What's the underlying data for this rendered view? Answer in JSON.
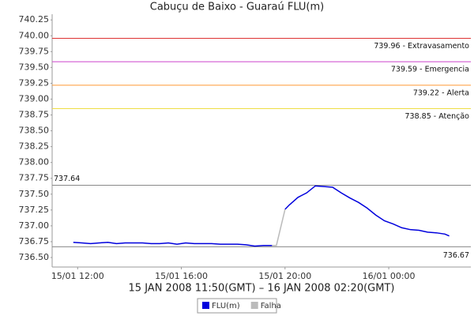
{
  "chart_data": {
    "type": "line",
    "title": "Cabuçu de Baixo - Guaraú FLU(m)",
    "x_label": "15 JAN 2008 11:50(GMT) – 16 JAN 2008 02:20(GMT)",
    "x": [
      "2008-01-15 11:50",
      "2008-01-15 12:10",
      "2008-01-15 12:30",
      "2008-01-15 12:50",
      "2008-01-15 13:10",
      "2008-01-15 13:30",
      "2008-01-15 13:50",
      "2008-01-15 14:10",
      "2008-01-15 14:30",
      "2008-01-15 14:50",
      "2008-01-15 15:10",
      "2008-01-15 15:30",
      "2008-01-15 15:50",
      "2008-01-15 16:10",
      "2008-01-15 16:30",
      "2008-01-15 16:50",
      "2008-01-15 17:10",
      "2008-01-15 17:30",
      "2008-01-15 17:50",
      "2008-01-15 18:10",
      "2008-01-15 18:30",
      "2008-01-15 18:50",
      "2008-01-15 19:10",
      "2008-01-15 19:30",
      "2008-01-15 19:40",
      "2008-01-15 20:00",
      "2008-01-15 20:10",
      "2008-01-15 20:30",
      "2008-01-15 20:50",
      "2008-01-15 21:10",
      "2008-01-15 21:30",
      "2008-01-15 21:50",
      "2008-01-15 22:10",
      "2008-01-15 22:30",
      "2008-01-15 22:50",
      "2008-01-15 23:10",
      "2008-01-15 23:30",
      "2008-01-15 23:50",
      "2008-01-16 00:10",
      "2008-01-16 00:30",
      "2008-01-16 00:50",
      "2008-01-16 01:10",
      "2008-01-16 01:30",
      "2008-01-16 01:50",
      "2008-01-16 02:10",
      "2008-01-16 02:20"
    ],
    "series": [
      {
        "name": "FLU(m)",
        "color": "#0000dd",
        "values": [
          736.74,
          736.73,
          736.72,
          736.73,
          736.74,
          736.72,
          736.73,
          736.73,
          736.73,
          736.72,
          736.72,
          736.73,
          736.71,
          736.73,
          736.72,
          736.72,
          736.72,
          736.71,
          736.71,
          736.71,
          736.7,
          736.68,
          736.69,
          736.69,
          null,
          737.26,
          737.33,
          737.45,
          737.52,
          737.63,
          737.62,
          737.61,
          737.52,
          737.44,
          737.37,
          737.28,
          737.17,
          737.08,
          737.03,
          736.97,
          736.94,
          736.93,
          736.9,
          736.89,
          736.87,
          736.84
        ]
      },
      {
        "name": "Falha",
        "color": "#bbbbbb",
        "values": [
          null,
          null,
          null,
          null,
          null,
          null,
          null,
          null,
          null,
          null,
          null,
          null,
          null,
          null,
          null,
          null,
          null,
          null,
          null,
          null,
          null,
          null,
          null,
          736.69,
          736.69,
          737.26,
          null,
          null,
          null,
          null,
          null,
          null,
          null,
          null,
          null,
          null,
          null,
          null,
          null,
          null,
          null,
          null,
          null,
          null,
          null,
          null
        ]
      }
    ],
    "markers": [
      {
        "value": 739.96,
        "label": "739.96 - Extravasamento",
        "color": "#dd3333"
      },
      {
        "value": 739.59,
        "label": "739.59 - Emergencia",
        "color": "#cc44cc"
      },
      {
        "value": 739.22,
        "label": "739.22 - Alerta",
        "color": "#ff9933"
      },
      {
        "value": 738.85,
        "label": "738.85 - Atenção",
        "color": "#eedd44"
      },
      {
        "value": 737.64,
        "color": "#888888"
      },
      {
        "value": 736.67,
        "color": "#888888"
      }
    ],
    "ylim": [
      736.35,
      740.34
    ],
    "yticks": [
      {
        "value": 736.5,
        "label": "736.50"
      },
      736.75,
      {
        "value": 737,
        "label": "737.00"
      },
      737.25,
      {
        "value": 737.5,
        "label": "737.50"
      },
      737.75,
      {
        "value": 738,
        "label": "738.00"
      },
      738.25,
      {
        "value": 738.5,
        "label": "738.50"
      },
      738.75,
      {
        "value": 739,
        "label": "739.00"
      },
      739.25,
      {
        "value": 739.5,
        "label": "739.50"
      },
      739.75,
      {
        "value": 740,
        "label": "740.00"
      },
      740.25
    ],
    "xlim": [
      "2008-01-15 11:01",
      "2008-01-16 03:10"
    ],
    "xticks": [
      {
        "value": "2008-01-15 12:00",
        "label": "15/01 12:00"
      },
      {
        "value": "2008-01-15 16:00",
        "label": "15/01 16:00"
      },
      {
        "value": "2008-01-15 20:00",
        "label": "15/01 20:00"
      },
      {
        "value": "2008-01-16 00:00",
        "label": "16/01 00:00"
      }
    ],
    "grid": false,
    "legend": "bottom"
  }
}
